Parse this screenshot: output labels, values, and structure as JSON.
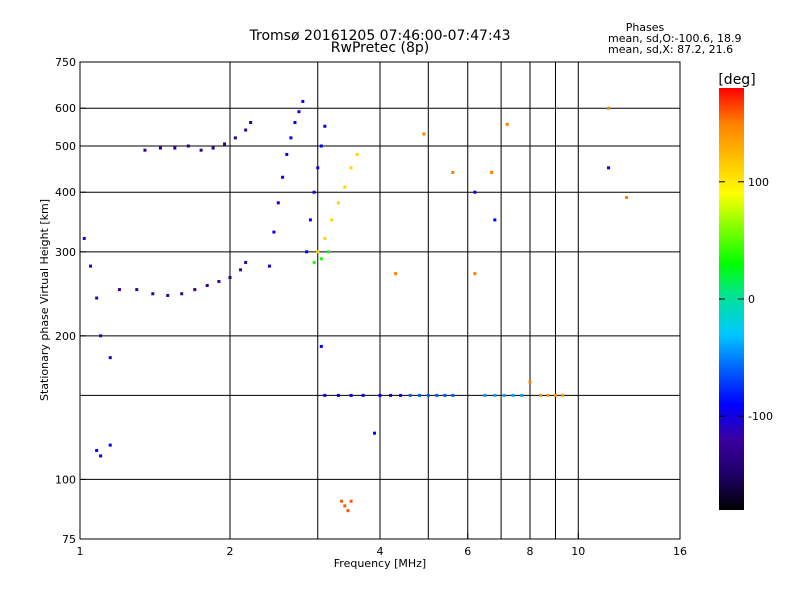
{
  "chart_data": {
    "type": "scatter",
    "title": "Tromsø 20161205 07:46:00-07:47:43",
    "subtitle": "RwPretec (8p)",
    "xlabel": "Frequency [MHz]",
    "ylabel": "Stationary phase Virtual Height [km]",
    "x_scale": "log",
    "y_scale": "log",
    "xlim": [
      1,
      16
    ],
    "ylim": [
      75,
      750
    ],
    "xticks": [
      1,
      2,
      4,
      6,
      8,
      10,
      16
    ],
    "xtick_labels": [
      "1",
      "2",
      "4",
      "6",
      "8",
      "10",
      "16"
    ],
    "yticks": [
      75,
      100,
      200,
      300,
      400,
      500,
      600,
      750
    ],
    "ytick_labels": [
      "75",
      "100",
      "200",
      "300",
      "400",
      "500",
      "600",
      "750"
    ],
    "x_gridlines": [
      2,
      3,
      4,
      5,
      6,
      7,
      8,
      9,
      10
    ],
    "y_gridlines": [
      100,
      150,
      200,
      300,
      400,
      500,
      600
    ],
    "grid": true,
    "phases_info": {
      "heading": "Phases",
      "line1": "mean, sd,O:-100.6, 18.9",
      "line2": "mean, sd,X:  87.2, 21.6"
    },
    "colorbar": {
      "label": "[deg]",
      "range": [
        -180,
        180
      ],
      "ticks": [
        100,
        0,
        -100
      ],
      "tick_labels": [
        "100",
        "0",
        "-100"
      ],
      "colormap": [
        "#000000",
        "#1e0066",
        "#3a00a0",
        "#0000ff",
        "#0060ff",
        "#00c8ff",
        "#00e0a0",
        "#00ff00",
        "#80ff00",
        "#ffff00",
        "#ffc000",
        "#ff8000",
        "#ff0000"
      ]
    },
    "series": [
      {
        "phase": -130,
        "x": [
          1.2,
          1.3,
          1.4,
          1.5,
          1.6,
          1.7,
          1.8,
          1.9,
          2.0,
          2.1,
          2.15
        ],
        "y": [
          250,
          250,
          245,
          243,
          245,
          250,
          255,
          260,
          265,
          275,
          285
        ]
      },
      {
        "phase": -130,
        "x": [
          1.35,
          1.45,
          1.55,
          1.65,
          1.75,
          1.85,
          1.95,
          2.05,
          2.15,
          2.2
        ],
        "y": [
          490,
          495,
          495,
          500,
          490,
          495,
          505,
          520,
          540,
          560
        ]
      },
      {
        "phase": -110,
        "x": [
          1.02,
          1.05,
          1.08,
          1.1,
          1.15
        ],
        "y": [
          320,
          280,
          240,
          200,
          180
        ]
      },
      {
        "phase": -95,
        "x": [
          2.4,
          2.45,
          2.5,
          2.55,
          2.6,
          2.65,
          2.7,
          2.75,
          2.8
        ],
        "y": [
          280,
          330,
          380,
          430,
          480,
          520,
          560,
          590,
          620
        ]
      },
      {
        "phase": -95,
        "x": [
          2.85,
          2.9,
          2.95,
          3.0,
          3.05,
          3.1
        ],
        "y": [
          300,
          350,
          400,
          450,
          500,
          550
        ]
      },
      {
        "phase": 110,
        "x": [
          3.0,
          3.1,
          3.2,
          3.3,
          3.4,
          3.5,
          3.6
        ],
        "y": [
          300,
          320,
          350,
          380,
          410,
          450,
          480
        ]
      },
      {
        "phase": 35,
        "x": [
          2.95,
          3.05,
          3.15
        ],
        "y": [
          285,
          290,
          300
        ]
      },
      {
        "phase": -100,
        "x": [
          3.1,
          3.3,
          3.5,
          3.7,
          4.0,
          4.2,
          4.4
        ],
        "y": [
          150,
          150,
          150,
          150,
          150,
          150,
          150
        ]
      },
      {
        "phase": -60,
        "x": [
          4.6,
          4.8,
          5.0,
          5.2,
          5.4,
          5.6
        ],
        "y": [
          150,
          150,
          150,
          150,
          150,
          150
        ]
      },
      {
        "phase": -40,
        "x": [
          6.5,
          6.8,
          7.1,
          7.4,
          7.7
        ],
        "y": [
          150,
          150,
          150,
          150,
          150
        ]
      },
      {
        "phase": 140,
        "x": [
          8.4,
          8.7,
          9.0,
          9.3
        ],
        "y": [
          150,
          150,
          150,
          150
        ]
      },
      {
        "phase": 160,
        "x": [
          3.35,
          3.4,
          3.45,
          3.5
        ],
        "y": [
          90,
          88,
          86,
          90
        ]
      },
      {
        "phase": 150,
        "x": [
          4.3,
          4.9,
          5.6,
          6.2,
          6.7,
          7.2,
          8.0,
          11.5,
          12.5
        ],
        "y": [
          270,
          530,
          440,
          270,
          440,
          555,
          160,
          600,
          390
        ]
      },
      {
        "phase": -90,
        "x": [
          1.08,
          1.1,
          1.15,
          3.05,
          3.9,
          6.2,
          6.8,
          11.5
        ],
        "y": [
          115,
          112,
          118,
          190,
          125,
          400,
          350,
          450
        ]
      }
    ]
  }
}
